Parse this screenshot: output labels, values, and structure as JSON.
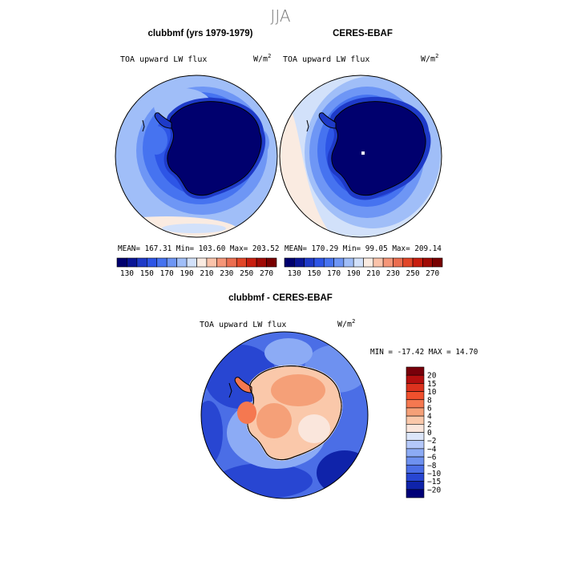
{
  "figure": {
    "season": "JJA",
    "units_label": "W/m",
    "units_sup": "2"
  },
  "panels": [
    {
      "title": "clubbmf (yrs 1979-1979)",
      "variable": "TOA upward LW flux",
      "stats_text": "MEAN= 167.31   Min= 103.60   Max= 203.52"
    },
    {
      "title": "CERES-EBAF",
      "variable": "TOA upward LW flux",
      "stats_text": "MEAN= 170.29   Min=  99.05   Max= 209.14"
    },
    {
      "title": "clubbmf - CERES-EBAF",
      "variable": "TOA upward LW flux",
      "stats_text": "MIN = -17.42 MAX =  14.70"
    }
  ],
  "chart_data": [
    {
      "type": "heatmap",
      "projection": "south-polar stereographic",
      "title": "clubbmf (yrs 1979-1979)",
      "variable": "TOA upward LW flux",
      "units": "W/m^2",
      "mean": 167.31,
      "min": 103.6,
      "max": 203.52,
      "colorbar": {
        "tick_labels": [
          "130",
          "150",
          "170",
          "190",
          "210",
          "230",
          "250",
          "270"
        ],
        "levels": [
          120,
          130,
          140,
          150,
          160,
          170,
          180,
          190,
          200,
          210,
          220,
          230,
          240,
          250,
          260,
          270,
          280
        ],
        "colors": [
          "#00006e",
          "#0a1596",
          "#1e3ac8",
          "#2d55e6",
          "#4673f0",
          "#6e96f5",
          "#a0bef8",
          "#d2e1fa",
          "#faebe1",
          "#fac3aa",
          "#f59678",
          "#eb6e50",
          "#e14628",
          "#c81e0f",
          "#a00a05",
          "#780000"
        ]
      }
    },
    {
      "type": "heatmap",
      "projection": "south-polar stereographic",
      "title": "CERES-EBAF",
      "variable": "TOA upward LW flux",
      "units": "W/m^2",
      "mean": 170.29,
      "min": 99.05,
      "max": 209.14,
      "colorbar": {
        "tick_labels": [
          "130",
          "150",
          "170",
          "190",
          "210",
          "230",
          "250",
          "270"
        ],
        "levels": [
          120,
          130,
          140,
          150,
          160,
          170,
          180,
          190,
          200,
          210,
          220,
          230,
          240,
          250,
          260,
          270,
          280
        ],
        "colors": [
          "#00006e",
          "#0a1596",
          "#1e3ac8",
          "#2d55e6",
          "#4673f0",
          "#6e96f5",
          "#a0bef8",
          "#d2e1fa",
          "#faebe1",
          "#fac3aa",
          "#f59678",
          "#eb6e50",
          "#e14628",
          "#c81e0f",
          "#a00a05",
          "#780000"
        ]
      }
    },
    {
      "type": "heatmap",
      "projection": "south-polar stereographic",
      "title": "clubbmf - CERES-EBAF",
      "variable": "TOA upward LW flux",
      "units": "W/m^2",
      "min": -17.42,
      "max": 14.7,
      "colorbar": {
        "orientation": "vertical",
        "tick_labels": [
          "20",
          "15",
          "10",
          "8",
          "6",
          "4",
          "2",
          "0",
          "−2",
          "−4",
          "−6",
          "−8",
          "−10",
          "−15",
          "−20"
        ],
        "colors": [
          "#78000a",
          "#b40f0f",
          "#dc321e",
          "#f0502d",
          "#f57850",
          "#f5a078",
          "#fac8aa",
          "#fae6dc",
          "#dce6fa",
          "#b4c8fa",
          "#8cabf5",
          "#6e91f0",
          "#4b6ee6",
          "#2846d2",
          "#0f23aa",
          "#000078"
        ]
      }
    }
  ]
}
